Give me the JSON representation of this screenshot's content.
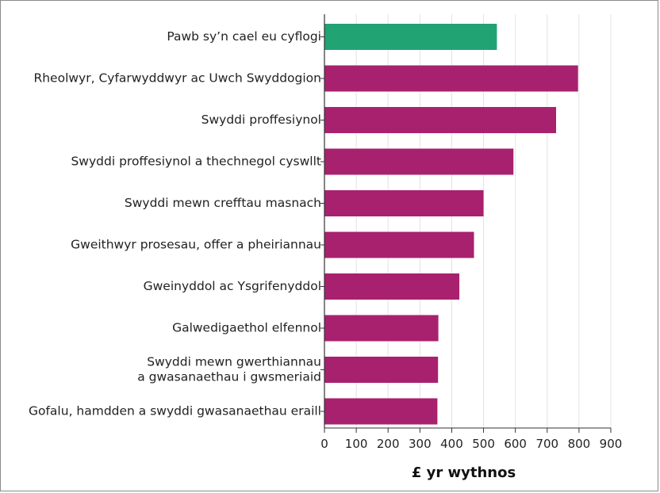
{
  "chart_data": {
    "type": "bar",
    "orientation": "horizontal",
    "categories": [
      [
        "Pawb sy’n cael eu cyflogi"
      ],
      [
        "Rheolwyr, Cyfarwyddwyr ac Uwch Swyddogion"
      ],
      [
        "Swyddi proffesiynol"
      ],
      [
        "Swyddi proffesiynol a thechnegol cyswllt"
      ],
      [
        "Swyddi mewn crefftau masnach"
      ],
      [
        "Gweithwyr prosesau, offer a pheiriannau"
      ],
      [
        "Gweinyddol ac Ysgrifenyddol"
      ],
      [
        "Galwedigaethol elfennol"
      ],
      [
        "Swyddi mewn gwerthiannau",
        "a gwasanaethau i gwsmeriaid"
      ],
      [
        "Gofalu, hamdden a swyddi gwasanaethau eraill"
      ]
    ],
    "values": [
      542,
      797,
      728,
      594,
      500,
      470,
      424,
      358,
      357,
      355
    ],
    "highlight_index": 0,
    "colors": {
      "highlight": "#22a373",
      "default": "#a8216f",
      "grid": "#e3e3e3",
      "axis": "#333333"
    },
    "xlabel": "£ yr wythnos",
    "xlim": [
      0,
      900
    ],
    "xticks": [
      0,
      100,
      200,
      300,
      400,
      500,
      600,
      700,
      800,
      900
    ],
    "grid": true
  }
}
